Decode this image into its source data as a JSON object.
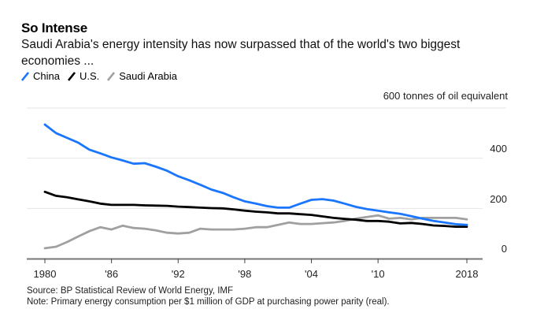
{
  "header": {
    "title": "So Intense",
    "subtitle": "Saudi Arabia's energy intensity has now surpassed that of the world's two biggest economies ..."
  },
  "legend": [
    {
      "label": "China",
      "color": "#1a75ff",
      "icon": "diagonal-line-swatch"
    },
    {
      "label": "U.S.",
      "color": "#000000",
      "icon": "diagonal-line-swatch"
    },
    {
      "label": "Saudi Arabia",
      "color": "#a0a0a0",
      "icon": "diagonal-line-swatch"
    }
  ],
  "footer": {
    "source": "Source: BP Statistical Review of World Energy, IMF",
    "note": "Note: Primary energy consumption per $1 million of GDP at purchasing power parity (real)."
  },
  "chart_data": {
    "type": "line",
    "title": "So Intense",
    "subtitle": "Saudi Arabia's energy intensity has now surpassed that of the world's two biggest economies ...",
    "xlabel": "",
    "ylabel": "tonnes of oil equivalent",
    "unit_label": "600 tonnes of oil equivalent",
    "xlim": [
      1980,
      2018
    ],
    "ylim": [
      0,
      600
    ],
    "y_ticks": [
      0,
      200,
      400,
      600
    ],
    "y_tick_labels": [
      "0",
      "200",
      "400",
      "600"
    ],
    "x_ticks": [
      1980,
      1986,
      1992,
      1998,
      2004,
      2010,
      2018
    ],
    "x_tick_labels": [
      "1980",
      "'86",
      "'92",
      "'98",
      "'04",
      "'10",
      "2018"
    ],
    "grid": true,
    "legend_position": "top-left",
    "x": [
      1980,
      1981,
      1982,
      1983,
      1984,
      1985,
      1986,
      1987,
      1988,
      1989,
      1990,
      1991,
      1992,
      1993,
      1994,
      1995,
      1996,
      1997,
      1998,
      1999,
      2000,
      2001,
      2002,
      2003,
      2004,
      2005,
      2006,
      2007,
      2008,
      2009,
      2010,
      2011,
      2012,
      2013,
      2014,
      2015,
      2016,
      2017,
      2018
    ],
    "series": [
      {
        "name": "China",
        "color": "#1a75ff",
        "values": [
          534,
          500,
          481,
          462,
          434,
          419,
          403,
          391,
          378,
          380,
          366,
          350,
          328,
          312,
          294,
          275,
          262,
          244,
          228,
          219,
          209,
          203,
          203,
          219,
          234,
          237,
          231,
          219,
          206,
          197,
          191,
          184,
          178,
          169,
          159,
          150,
          144,
          137,
          134
        ]
      },
      {
        "name": "U.S.",
        "color": "#000000",
        "values": [
          266,
          250,
          244,
          236,
          228,
          219,
          214,
          214,
          214,
          212,
          211,
          210,
          207,
          205,
          203,
          201,
          200,
          196,
          191,
          187,
          184,
          180,
          180,
          177,
          174,
          168,
          162,
          158,
          155,
          150,
          150,
          147,
          140,
          142,
          138,
          132,
          130,
          127,
          127
        ]
      },
      {
        "name": "Saudi Arabia",
        "color": "#a0a0a0",
        "values": [
          41,
          47,
          66,
          88,
          109,
          125,
          116,
          131,
          122,
          119,
          112,
          103,
          100,
          103,
          119,
          116,
          116,
          116,
          119,
          125,
          125,
          134,
          144,
          138,
          138,
          141,
          144,
          150,
          159,
          166,
          172,
          159,
          162,
          156,
          162,
          162,
          162,
          162,
          156
        ]
      }
    ]
  }
}
